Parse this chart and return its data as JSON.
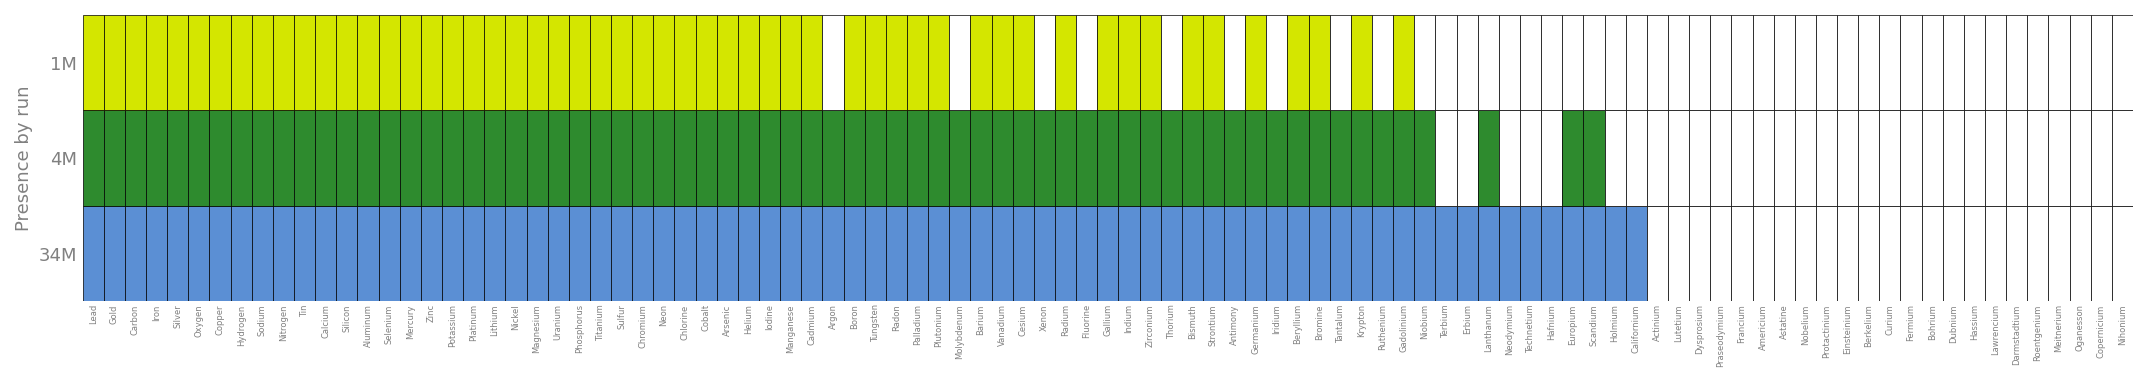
{
  "elements": [
    "Lead",
    "Gold",
    "Carbon",
    "Iron",
    "Silver",
    "Oxygen",
    "Copper",
    "Hydrogen",
    "Sodium",
    "Nitrogen",
    "Tin",
    "Calcium",
    "Silicon",
    "Aluminum",
    "Selenium",
    "Mercury",
    "Zinc",
    "Potassium",
    "Platinum",
    "Lithium",
    "Nickel",
    "Magnesium",
    "Uranium",
    "Phosphorus",
    "Titanium",
    "Sulfur",
    "Chromium",
    "Neon",
    "Chlorine",
    "Cobalt",
    "Arsenic",
    "Helium",
    "Iodine",
    "Manganese",
    "Cadmium",
    "Argon",
    "Boron",
    "Tungsten",
    "Radon",
    "Palladium",
    "Plutonium",
    "Molybdenum",
    "Barium",
    "Vanadium",
    "Cesium",
    "Xenon",
    "Radium",
    "Fluorine",
    "Gallium",
    "Indium",
    "Zirconium",
    "Thorium",
    "Bismuth",
    "Strontium",
    "Antimony",
    "Germanium",
    "Iridium",
    "Beryllium",
    "Bromine",
    "Tantalum",
    "Krypton",
    "Ruthenium",
    "Gadolinium",
    "Niobium",
    "Terbium",
    "Erbium",
    "Lanthanum",
    "Neodymium",
    "Technetium",
    "Hafnium",
    "Europium",
    "Scandium",
    "Holmium",
    "Californium",
    "Actinium",
    "Lutetium",
    "Dysprosium",
    "Praseodymium",
    "Francium",
    "Americium",
    "Astatine",
    "Nobelium",
    "Protactinium",
    "Einsteinium",
    "Berkelium",
    "Curium",
    "Fermium",
    "Bohrium",
    "Dubnium",
    "Hassium",
    "Lawrencium",
    "Darmstadtium",
    "Roentgenium",
    "Meitnerium",
    "Oganesson",
    "Copernicium",
    "Nihonium"
  ],
  "presence_1M": [
    1,
    1,
    1,
    1,
    1,
    1,
    1,
    1,
    1,
    1,
    1,
    1,
    1,
    1,
    1,
    1,
    1,
    1,
    1,
    1,
    1,
    1,
    1,
    1,
    1,
    1,
    1,
    1,
    1,
    1,
    1,
    1,
    1,
    1,
    1,
    0,
    1,
    1,
    1,
    1,
    1,
    0,
    1,
    1,
    1,
    0,
    1,
    0,
    1,
    1,
    1,
    0,
    1,
    1,
    0,
    1,
    0,
    1,
    1,
    0,
    1,
    0,
    1,
    0,
    0,
    0,
    0,
    0,
    0,
    0,
    0,
    0,
    0,
    0,
    0,
    0,
    0,
    0,
    0,
    0,
    0,
    0,
    0,
    0,
    0,
    0,
    0,
    0,
    0,
    0,
    0,
    0,
    0,
    0,
    0,
    0,
    0
  ],
  "presence_4M": [
    1,
    1,
    1,
    1,
    1,
    1,
    1,
    1,
    1,
    1,
    1,
    1,
    1,
    1,
    1,
    1,
    1,
    1,
    1,
    1,
    1,
    1,
    1,
    1,
    1,
    1,
    1,
    1,
    1,
    1,
    1,
    1,
    1,
    1,
    1,
    1,
    1,
    1,
    1,
    1,
    1,
    1,
    1,
    1,
    1,
    1,
    1,
    1,
    1,
    1,
    1,
    1,
    1,
    1,
    1,
    1,
    1,
    1,
    1,
    1,
    1,
    1,
    1,
    1,
    0,
    0,
    1,
    0,
    0,
    0,
    1,
    1,
    0,
    0,
    0,
    0,
    0,
    0,
    0,
    0,
    0,
    0,
    0,
    0,
    0,
    0,
    0,
    0,
    0,
    0,
    0,
    0,
    0,
    0,
    0,
    0,
    0
  ],
  "presence_34M": [
    1,
    1,
    1,
    1,
    1,
    1,
    1,
    1,
    1,
    1,
    1,
    1,
    1,
    1,
    1,
    1,
    1,
    1,
    1,
    1,
    1,
    1,
    1,
    1,
    1,
    1,
    1,
    1,
    1,
    1,
    1,
    1,
    1,
    1,
    1,
    1,
    1,
    1,
    1,
    1,
    1,
    1,
    1,
    1,
    1,
    1,
    1,
    1,
    1,
    1,
    1,
    1,
    1,
    1,
    1,
    1,
    1,
    1,
    1,
    1,
    1,
    1,
    1,
    1,
    1,
    1,
    1,
    1,
    1,
    1,
    1,
    1,
    1,
    1,
    0,
    0,
    0,
    0,
    0,
    0,
    0,
    0,
    0,
    0,
    0,
    0,
    0,
    0,
    0,
    0,
    0,
    0,
    0,
    0,
    0,
    0,
    0
  ],
  "color_1M": "#d4e600",
  "color_4M": "#2e8b2e",
  "color_34M": "#5b8fd4",
  "color_absent": "#ffffff",
  "ylabel": "Presence by run",
  "yticks": [
    "34M",
    "4M",
    "1M"
  ],
  "background_color": "#f0f0f0"
}
